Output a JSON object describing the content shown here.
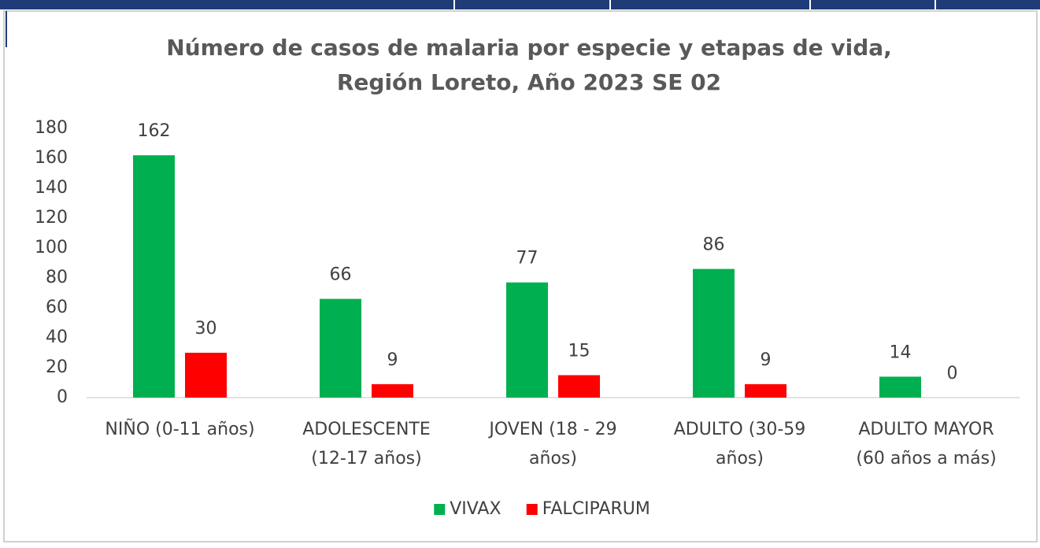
{
  "chart_data": {
    "type": "bar",
    "title": [
      "Número de casos de malaria por especie y etapas de vida,",
      "Región Loreto, Año 2023  SE 02"
    ],
    "categories": [
      [
        "NIÑO (0-11 años)"
      ],
      [
        "ADOLESCENTE",
        "(12-17 años)"
      ],
      [
        "JOVEN (18 - 29",
        "años)"
      ],
      [
        "ADULTO (30-59",
        "años)"
      ],
      [
        "ADULTO MAYOR",
        "(60 años a más)"
      ]
    ],
    "series": [
      {
        "name": "VIVAX",
        "color": "#00b050",
        "values": [
          162,
          66,
          77,
          86,
          14
        ]
      },
      {
        "name": "FALCIPARUM",
        "color": "#ff0000",
        "values": [
          30,
          9,
          15,
          9,
          0
        ]
      }
    ],
    "ylim": [
      0,
      180
    ],
    "yticks": [
      0,
      20,
      40,
      60,
      80,
      100,
      120,
      140,
      160,
      180
    ],
    "grid": false,
    "legend": "bottom"
  }
}
